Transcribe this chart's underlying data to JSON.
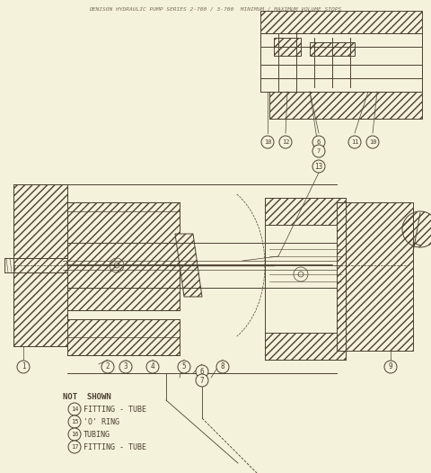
{
  "bg_color": "#f5f2dc",
  "line_color": "#4a4030",
  "hatch_color": "#4a4030",
  "title_text": "DENISON HYDRAULIC PUMP SERIES 2-700 / 3-700  MINIMUM / MAXIMUM VOLUME STOPS",
  "not_shown_items": [
    {
      "num": "14",
      "label": "FITTING - TUBE"
    },
    {
      "num": "15",
      "label": "'O' RING"
    },
    {
      "num": "16",
      "label": "TUBING"
    },
    {
      "num": "17",
      "label": "FITTING - TUBE"
    }
  ],
  "callout_labels_main": [
    "1",
    "2",
    "3",
    "4",
    "5",
    "6",
    "7",
    "8",
    "9",
    "13"
  ],
  "callout_labels_detail": [
    "10",
    "12",
    "6",
    "7",
    "11",
    "10"
  ],
  "figsize": [
    4.8,
    5.26
  ],
  "dpi": 100
}
